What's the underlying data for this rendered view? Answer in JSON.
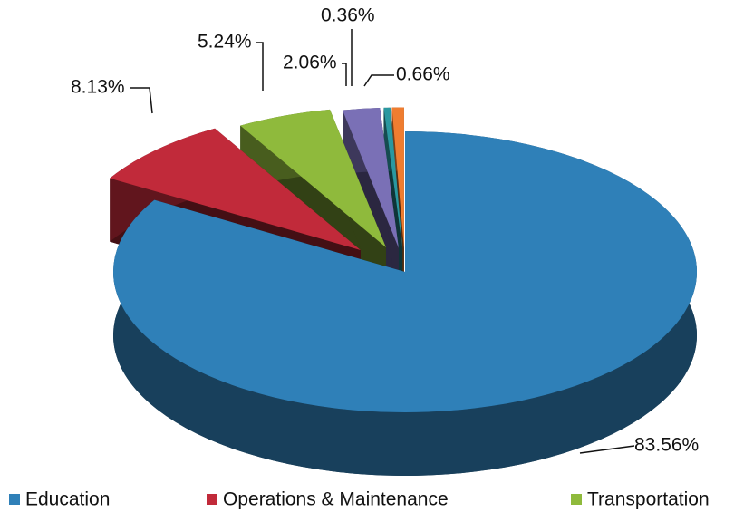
{
  "chart_data": {
    "type": "pie3d",
    "categories": [
      "Education",
      "Operations & Maintenance",
      "Transportation",
      null,
      null,
      null
    ],
    "values": [
      83.56,
      8.13,
      5.24,
      2.06,
      0.36,
      0.66
    ],
    "value_labels": [
      "83.56%",
      "8.13%",
      "5.24%",
      "2.06%",
      "0.36%",
      "0.66%"
    ],
    "colors": [
      "#2f80b8",
      "#c12a3a",
      "#8fba3c",
      "#7a70b6",
      "#2a98a0",
      "#ef7d30"
    ],
    "legend": "bottom"
  }
}
